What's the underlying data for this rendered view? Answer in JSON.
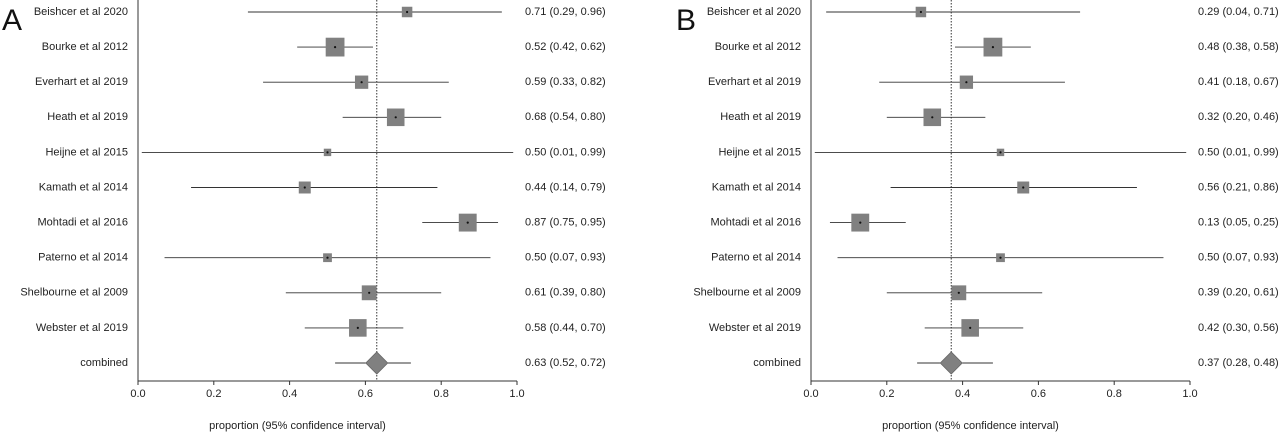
{
  "chart_data": [
    {
      "type": "forest",
      "panel_label": "A",
      "xlabel": "proportion (95% confidence interval)",
      "xlim": [
        0.0,
        1.0
      ],
      "xticks": [
        "0.0",
        "0.2",
        "0.4",
        "0.6",
        "0.8",
        "1.0"
      ],
      "xtick_values": [
        0.0,
        0.2,
        0.4,
        0.6,
        0.8,
        1.0
      ],
      "reference_line": 0.63,
      "studies": [
        {
          "label": "Beishcer et al 2020",
          "est": 0.71,
          "lo": 0.29,
          "hi": 0.96,
          "weight": 1,
          "ci_text": "0.71 (0.29, 0.96)"
        },
        {
          "label": "Bourke et al 2012",
          "est": 0.52,
          "lo": 0.42,
          "hi": 0.62,
          "weight": 3.2,
          "ci_text": "0.52 (0.42, 0.62)"
        },
        {
          "label": "Everhart et al 2019",
          "est": 0.59,
          "lo": 0.33,
          "hi": 0.82,
          "weight": 1.6,
          "ci_text": "0.59 (0.33, 0.82)"
        },
        {
          "label": "Heath et al 2019",
          "est": 0.68,
          "lo": 0.54,
          "hi": 0.8,
          "weight": 2.8,
          "ci_text": "0.68 (0.54, 0.80)"
        },
        {
          "label": "Heijne et al 2015",
          "est": 0.5,
          "lo": 0.01,
          "hi": 0.99,
          "weight": 0.5,
          "ci_text": "0.50 (0.01, 0.99)"
        },
        {
          "label": "Kamath et al 2014",
          "est": 0.44,
          "lo": 0.14,
          "hi": 0.79,
          "weight": 1.3,
          "ci_text": "0.44 (0.14, 0.79)"
        },
        {
          "label": "Mohtadi et al 2016",
          "est": 0.87,
          "lo": 0.75,
          "hi": 0.95,
          "weight": 2.9,
          "ci_text": "0.87 (0.75, 0.95)"
        },
        {
          "label": "Paterno et al 2014",
          "est": 0.5,
          "lo": 0.07,
          "hi": 0.93,
          "weight": 0.7,
          "ci_text": "0.50 (0.07, 0.93)"
        },
        {
          "label": "Shelbourne et al 2009",
          "est": 0.61,
          "lo": 0.39,
          "hi": 0.8,
          "weight": 2.0,
          "ci_text": "0.61 (0.39, 0.80)"
        },
        {
          "label": "Webster et al 2019",
          "est": 0.58,
          "lo": 0.44,
          "hi": 0.7,
          "weight": 2.8,
          "ci_text": "0.58 (0.44, 0.70)"
        }
      ],
      "combined": {
        "label": "combined",
        "est": 0.63,
        "lo": 0.52,
        "hi": 0.72,
        "ci_text": "0.63 (0.52, 0.72)"
      }
    },
    {
      "type": "forest",
      "panel_label": "B",
      "xlabel": "proportion (95% confidence interval)",
      "xlim": [
        0.0,
        1.0
      ],
      "xticks": [
        "0.0",
        "0.2",
        "0.4",
        "0.6",
        "0.8",
        "1.0"
      ],
      "xtick_values": [
        0.0,
        0.2,
        0.4,
        0.6,
        0.8,
        1.0
      ],
      "reference_line": 0.37,
      "studies": [
        {
          "label": "Beishcer et al 2020",
          "est": 0.29,
          "lo": 0.04,
          "hi": 0.71,
          "weight": 1,
          "ci_text": "0.29 (0.04, 0.71)"
        },
        {
          "label": "Bourke et al 2012",
          "est": 0.48,
          "lo": 0.38,
          "hi": 0.58,
          "weight": 3.2,
          "ci_text": "0.48 (0.38, 0.58)"
        },
        {
          "label": "Everhart et al 2019",
          "est": 0.41,
          "lo": 0.18,
          "hi": 0.67,
          "weight": 1.6,
          "ci_text": "0.41 (0.18, 0.67)"
        },
        {
          "label": "Heath et al 2019",
          "est": 0.32,
          "lo": 0.2,
          "hi": 0.46,
          "weight": 2.8,
          "ci_text": "0.32 (0.20, 0.46)"
        },
        {
          "label": "Heijne et al 2015",
          "est": 0.5,
          "lo": 0.01,
          "hi": 0.99,
          "weight": 0.5,
          "ci_text": "0.50 (0.01, 0.99)"
        },
        {
          "label": "Kamath et al 2014",
          "est": 0.56,
          "lo": 0.21,
          "hi": 0.86,
          "weight": 1.3,
          "ci_text": "0.56 (0.21, 0.86)"
        },
        {
          "label": "Mohtadi et al 2016",
          "est": 0.13,
          "lo": 0.05,
          "hi": 0.25,
          "weight": 2.9,
          "ci_text": "0.13 (0.05, 0.25)"
        },
        {
          "label": "Paterno et al 2014",
          "est": 0.5,
          "lo": 0.07,
          "hi": 0.93,
          "weight": 0.7,
          "ci_text": "0.50 (0.07, 0.93)"
        },
        {
          "label": "Shelbourne et al 2009",
          "est": 0.39,
          "lo": 0.2,
          "hi": 0.61,
          "weight": 2.0,
          "ci_text": "0.39 (0.20, 0.61)"
        },
        {
          "label": "Webster et al 2019",
          "est": 0.42,
          "lo": 0.3,
          "hi": 0.56,
          "weight": 2.8,
          "ci_text": "0.42 (0.30, 0.56)"
        }
      ],
      "combined": {
        "label": "combined",
        "est": 0.37,
        "lo": 0.28,
        "hi": 0.48,
        "ci_text": "0.37 (0.28, 0.48)"
      }
    }
  ]
}
